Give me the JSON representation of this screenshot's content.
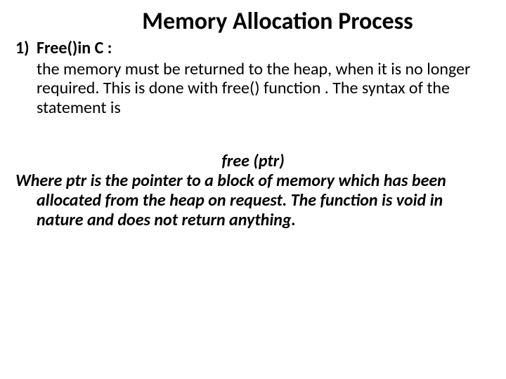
{
  "title": "Memory Allocation Process",
  "item": {
    "marker": "1)",
    "heading": "Free()in C :",
    "body": "the memory must be returned to the heap, when it is no longer required. This is done with free() function . The syntax of the statement is"
  },
  "codeLine": "free (ptr)",
  "description": "Where ptr is the pointer to a block of memory which has been allocated from the heap on request. The function is void in nature and does not return anything.",
  "style": {
    "background": "#ffffff",
    "text_color": "#000000",
    "title_fontsize": 34,
    "body_fontsize": 24,
    "font_family": "Calibri"
  }
}
